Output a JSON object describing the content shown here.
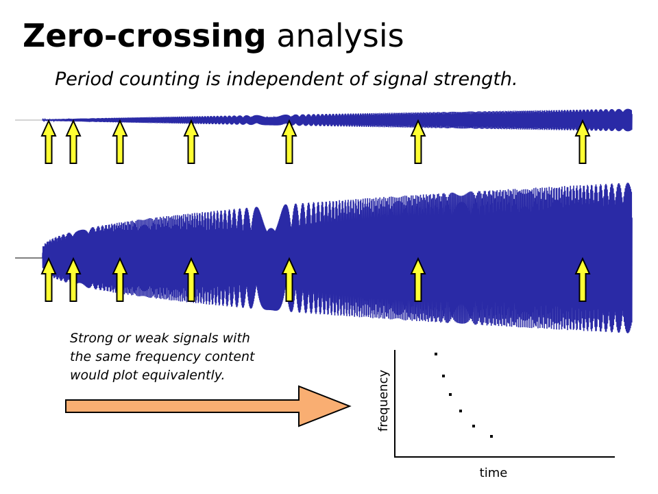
{
  "title": {
    "bold": "Zero-crossing",
    "normal": "analysis"
  },
  "subtitle": "Period counting is independent of signal strength.",
  "note": {
    "lines": [
      "Strong or weak signals with",
      "the same frequency content",
      "would plot equivalently."
    ]
  },
  "plot": {
    "ylabel": "frequency",
    "xlabel": "time",
    "dots": 6
  },
  "colors": {
    "wave": "#2a2aa6",
    "axis_line": "#aaaaaa",
    "arrow_fill": "#ffff33",
    "arrow_stroke": "#000000",
    "big_arrow_fill": "#f9ae72",
    "big_arrow_stroke": "#000000"
  }
}
